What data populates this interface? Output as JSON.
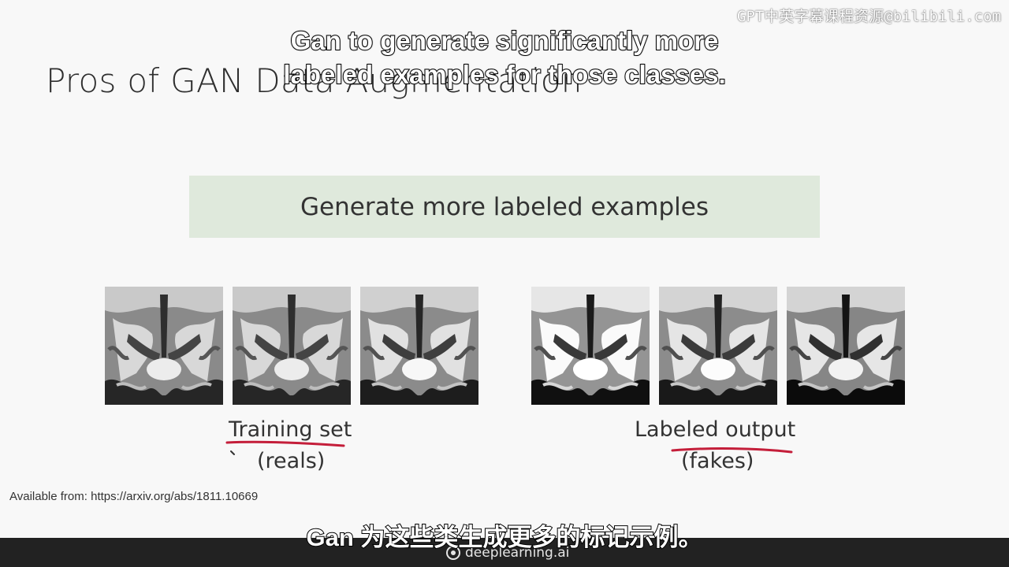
{
  "slide": {
    "title": "Pros of GAN Data Augmentation",
    "callout": "Generate more labeled examples",
    "left_caption": "Training set",
    "left_sub": "(reals)",
    "right_caption": "Labeled output",
    "right_sub": "(fakes)",
    "source": "Available from: https://arxiv.org/abs/1811.10669"
  },
  "subtitles": {
    "en_line1": "Gan to generate significantly more",
    "en_line2": "labeled examples for those classes.",
    "zh": "Gan 为这些类生成更多的标记示例。"
  },
  "watermark": {
    "text": "GPT中英字幕课程资源@bilibili.com"
  },
  "footer": {
    "brand": "deeplearning.ai"
  },
  "colors": {
    "callout_bg": "#dfe9dc",
    "ink_underline": "#c41e3a",
    "footer_bg": "#222222"
  },
  "images": {
    "reals": [
      "brain-mri-real-1",
      "brain-mri-real-2",
      "brain-mri-real-3"
    ],
    "fakes": [
      "brain-mri-fake-1",
      "brain-mri-fake-2",
      "brain-mri-fake-3"
    ]
  }
}
